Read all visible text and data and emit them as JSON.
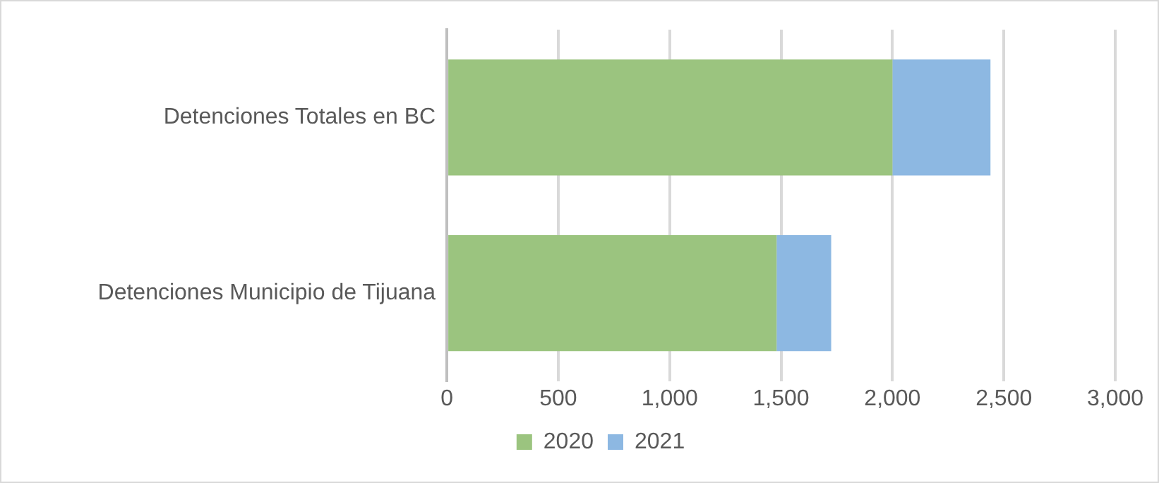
{
  "chart_data": {
    "type": "bar",
    "orientation": "horizontal",
    "stacked": true,
    "categories": [
      "Detenciones Totales en BC",
      "Detenciones Municipio de Tijuana"
    ],
    "series": [
      {
        "name": "2020",
        "color": "#9bc47f",
        "values": [
          2000,
          1480
        ]
      },
      {
        "name": "2021",
        "color": "#8db8e2",
        "values": [
          440,
          245
        ]
      }
    ],
    "xlim": [
      0,
      3000
    ],
    "xticks": [
      {
        "value": 0,
        "label": "0"
      },
      {
        "value": 500,
        "label": "500"
      },
      {
        "value": 1000,
        "label": "1,000"
      },
      {
        "value": 1500,
        "label": "1,500"
      },
      {
        "value": 2000,
        "label": "2,000"
      },
      {
        "value": 2500,
        "label": "2,500"
      },
      {
        "value": 3000,
        "label": "3,000"
      }
    ],
    "grid": "x",
    "legend": "bottom"
  }
}
